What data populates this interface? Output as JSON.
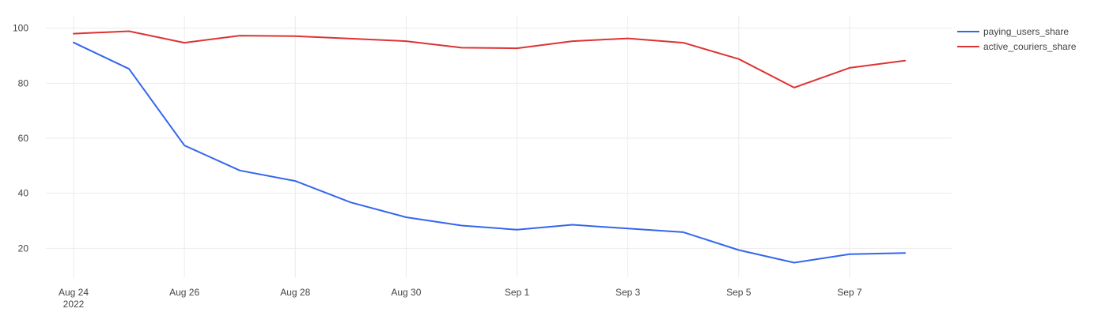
{
  "chart_data": {
    "type": "line",
    "x": [
      "2022-08-24",
      "2022-08-25",
      "2022-08-26",
      "2022-08-27",
      "2022-08-28",
      "2022-08-29",
      "2022-08-30",
      "2022-08-31",
      "2022-09-01",
      "2022-09-02",
      "2022-09-03",
      "2022-09-04",
      "2022-09-05",
      "2022-09-06",
      "2022-09-07",
      "2022-09-08"
    ],
    "series": [
      {
        "name": "paying_users_share",
        "color": "#3366ee",
        "values": [
          94.8,
          85.2,
          57.4,
          48.3,
          44.5,
          36.7,
          31.3,
          28.3,
          26.8,
          28.6,
          27.2,
          25.9,
          19.4,
          14.8,
          17.9,
          18.3
        ]
      },
      {
        "name": "active_couriers_share",
        "color": "#dd3333",
        "values": [
          98.0,
          98.9,
          94.7,
          97.3,
          97.1,
          96.2,
          95.3,
          92.9,
          92.7,
          95.3,
          96.3,
          94.7,
          88.8,
          78.4,
          85.6,
          88.2
        ]
      }
    ],
    "x_ticks": [
      {
        "date": "2022-08-24",
        "label": "Aug 24",
        "sublabel": "2022"
      },
      {
        "date": "2022-08-26",
        "label": "Aug 26"
      },
      {
        "date": "2022-08-28",
        "label": "Aug 28"
      },
      {
        "date": "2022-08-30",
        "label": "Aug 30"
      },
      {
        "date": "2022-09-01",
        "label": "Sep 1"
      },
      {
        "date": "2022-09-03",
        "label": "Sep 3"
      },
      {
        "date": "2022-09-05",
        "label": "Sep 5"
      },
      {
        "date": "2022-09-07",
        "label": "Sep 7"
      }
    ],
    "y_ticks": [
      20,
      40,
      60,
      80,
      100
    ],
    "ylim": [
      9.5,
      104.5
    ],
    "xlim": [
      "2022-08-24",
      "2022-09-08"
    ],
    "grid": true,
    "legend_position": "top-right",
    "title": "",
    "xlabel": "",
    "ylabel": ""
  }
}
